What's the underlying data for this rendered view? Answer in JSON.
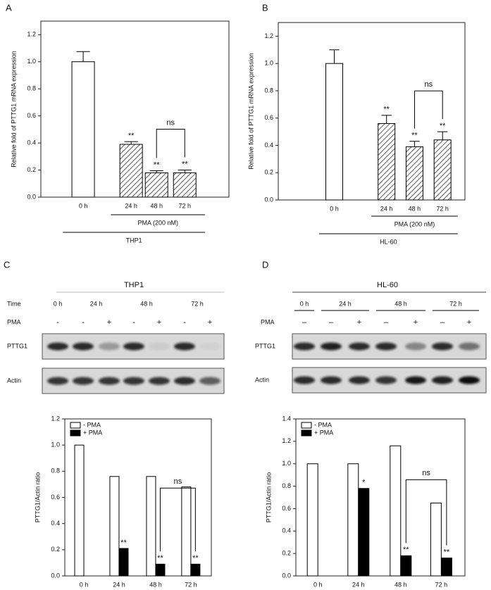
{
  "chart_data": [
    {
      "panel": "A",
      "type": "bar",
      "y_label": "Relative fold of PTTG1 mRNA expression",
      "categories": [
        "0 h",
        "24 h",
        "48 h",
        "72 h"
      ],
      "series": [
        {
          "values": [
            1.0,
            0.39,
            0.18,
            0.18
          ],
          "errors": [
            0.075,
            0.02,
            0.015,
            0.02
          ],
          "fills": [
            "white",
            "hatched",
            "hatched",
            "hatched"
          ],
          "edge_color": "#000000",
          "significance": [
            null,
            "**",
            "**",
            "**"
          ]
        }
      ],
      "ylim": [
        0,
        1.3
      ],
      "yticks": [
        {
          "value": 0,
          "label": "0.0"
        },
        {
          "value": 0.2,
          "label": "0.2"
        },
        {
          "value": 0.4,
          "label": "0.4"
        },
        {
          "value": 0.6,
          "label": "0.6"
        },
        {
          "value": 0.8,
          "label": "0.8"
        },
        {
          "value": 1.0,
          "label": "1.0"
        },
        {
          "value": 1.2,
          "label": "1.2"
        }
      ],
      "bracket": {
        "label": "ns",
        "categories": [
          "48 h",
          "72 h"
        ]
      },
      "group_labels": [
        {
          "label": "PMA (200 nM)",
          "from": "24 h",
          "to": "72 h"
        },
        {
          "label": "THP1",
          "from": "0 h",
          "to": "72 h"
        }
      ]
    },
    {
      "panel": "B",
      "type": "bar",
      "y_label": "Relative fold of PTTG1 mRNA expression",
      "categories": [
        "0 h",
        "24 h",
        "48 h",
        "72 h"
      ],
      "series": [
        {
          "values": [
            1.0,
            0.56,
            0.39,
            0.44
          ],
          "errors": [
            0.1,
            0.06,
            0.04,
            0.06
          ],
          "fills": [
            "white",
            "hatched",
            "hatched",
            "hatched"
          ],
          "edge_color": "#000000",
          "significance": [
            null,
            "**",
            "**",
            "**"
          ]
        }
      ],
      "ylim": [
        0,
        1.3
      ],
      "yticks": [
        {
          "value": 0,
          "label": "0.0"
        },
        {
          "value": 0.2,
          "label": "0.2"
        },
        {
          "value": 0.4,
          "label": "0.4"
        },
        {
          "value": 0.6,
          "label": "0.6"
        },
        {
          "value": 0.8,
          "label": "0.8"
        },
        {
          "value": 1.0,
          "label": "1.0"
        },
        {
          "value": 1.2,
          "label": "1.2"
        }
      ],
      "bracket": {
        "label": "ns",
        "categories": [
          "48 h",
          "72 h"
        ]
      },
      "group_labels": [
        {
          "label": "PMA (200 nM)",
          "from": "24 h",
          "to": "72 h"
        },
        {
          "label": "HL-60",
          "from": "0 h",
          "to": "72 h"
        }
      ]
    },
    {
      "panel": "C",
      "type": "bar",
      "y_label": "PTTG1/Actin ratio",
      "categories": [
        "0 h",
        "24 h",
        "48 h",
        "72 h"
      ],
      "series": [
        {
          "name": "- PMA",
          "color": "#ffffff",
          "edge_color": "#000000",
          "values": [
            1.0,
            0.76,
            0.76,
            0.68
          ]
        },
        {
          "name": "+ PMA",
          "color": "#000000",
          "edge_color": "#000000",
          "values": [
            null,
            0.21,
            0.09,
            0.09
          ],
          "significance": [
            null,
            "**",
            "**",
            "**"
          ]
        }
      ],
      "legend": "upper left",
      "ylim": [
        0,
        1.2
      ],
      "yticks": [
        {
          "value": 0,
          "label": "0.0"
        },
        {
          "value": 0.2,
          "label": "0.2"
        },
        {
          "value": 0.4,
          "label": "0.4"
        },
        {
          "value": 0.6,
          "label": "0.6"
        },
        {
          "value": 0.8,
          "label": "0.8"
        },
        {
          "value": 1.0,
          "label": "1.0"
        },
        {
          "value": 1.2,
          "label": "1.2"
        }
      ],
      "bracket": {
        "label": "ns",
        "categories": [
          "48 h",
          "72 h"
        ]
      }
    },
    {
      "panel": "D",
      "type": "bar",
      "y_label": "PTTG1/Actin ratio",
      "categories": [
        "0 h",
        "24 h",
        "48 h",
        "72 h"
      ],
      "series": [
        {
          "name": "- PMA",
          "color": "#ffffff",
          "edge_color": "#000000",
          "values": [
            1.0,
            1.0,
            1.16,
            0.65
          ]
        },
        {
          "name": "+ PMA",
          "color": "#000000",
          "edge_color": "#000000",
          "values": [
            null,
            0.78,
            0.18,
            0.16
          ],
          "significance": [
            null,
            "*",
            "**",
            "**"
          ]
        }
      ],
      "legend": "upper left",
      "ylim": [
        0,
        1.4
      ],
      "yticks": [
        {
          "value": 0,
          "label": "0.0"
        },
        {
          "value": 0.2,
          "label": "0.2"
        },
        {
          "value": 0.4,
          "label": "0.4"
        },
        {
          "value": 0.6,
          "label": "0.6"
        },
        {
          "value": 0.8,
          "label": "0.8"
        },
        {
          "value": 1.0,
          "label": "1.0"
        },
        {
          "value": 1.2,
          "label": "1.2"
        },
        {
          "value": 1.4,
          "label": "1.4"
        }
      ],
      "bracket": {
        "label": "ns",
        "categories": [
          "48 h",
          "72 h"
        ]
      }
    }
  ],
  "blots": [
    {
      "title": "THP1",
      "time_label": "Time",
      "times": [
        "0 h",
        "24 h",
        "48 h",
        "72 h"
      ],
      "pma_label": "PMA",
      "pma": [
        "-",
        "-",
        "+",
        "-",
        "+",
        "-",
        "+"
      ],
      "rows": [
        "PTTG1",
        "Actin"
      ]
    },
    {
      "title": "HL-60",
      "times": [
        "0 h",
        "24 h",
        "48 h",
        "72 h"
      ],
      "pma_label": "PMA",
      "pma": [
        "–",
        "–",
        "+",
        "–",
        "+",
        "–",
        "+"
      ],
      "rows": [
        "PTTG1",
        "Actin"
      ]
    }
  ]
}
